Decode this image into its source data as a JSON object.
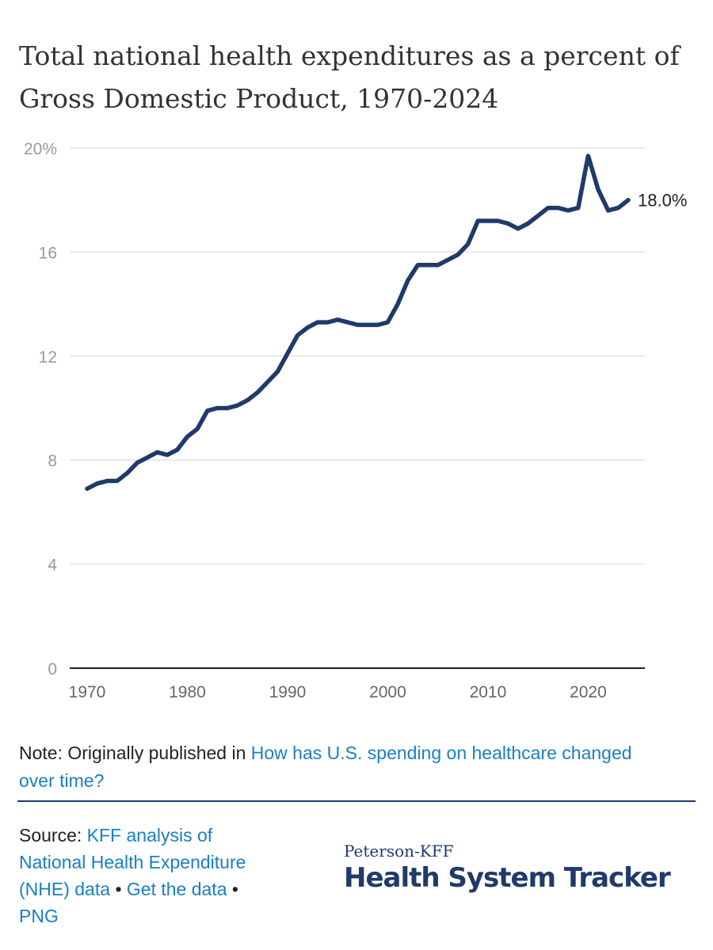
{
  "chart_data": {
    "type": "line",
    "title": "Total national health expenditures as a percent of Gross Domestic Product, 1970-2024",
    "xlabel": "",
    "ylabel": "",
    "xlim": [
      1970,
      2024
    ],
    "ylim": [
      0,
      20
    ],
    "xticks": [
      1970,
      1980,
      1990,
      2000,
      2010,
      2020
    ],
    "ytick_labels": [
      "0",
      "4",
      "8",
      "12",
      "16",
      "20%"
    ],
    "yticks": [
      0,
      4,
      8,
      12,
      16,
      20
    ],
    "grid": true,
    "series": [
      {
        "name": "Total national health expenditures as a percent of GDP",
        "color": "#1f3a6b",
        "x": [
          1970,
          1971,
          1972,
          1973,
          1974,
          1975,
          1976,
          1977,
          1978,
          1979,
          1980,
          1981,
          1982,
          1983,
          1984,
          1985,
          1986,
          1987,
          1988,
          1989,
          1990,
          1991,
          1992,
          1993,
          1994,
          1995,
          1996,
          1997,
          1998,
          1999,
          2000,
          2001,
          2002,
          2003,
          2004,
          2005,
          2006,
          2007,
          2008,
          2009,
          2010,
          2011,
          2012,
          2013,
          2014,
          2015,
          2016,
          2017,
          2018,
          2019,
          2020,
          2021,
          2022,
          2023,
          2024
        ],
        "values": [
          6.9,
          7.1,
          7.2,
          7.2,
          7.5,
          7.9,
          8.1,
          8.3,
          8.2,
          8.4,
          8.9,
          9.2,
          9.9,
          10.0,
          10.0,
          10.1,
          10.3,
          10.6,
          11.0,
          11.4,
          12.1,
          12.8,
          13.1,
          13.3,
          13.3,
          13.4,
          13.3,
          13.2,
          13.2,
          13.2,
          13.3,
          14.0,
          14.9,
          15.5,
          15.5,
          15.5,
          15.7,
          15.9,
          16.3,
          17.2,
          17.2,
          17.2,
          17.1,
          16.9,
          17.1,
          17.4,
          17.7,
          17.7,
          17.6,
          17.7,
          19.7,
          18.4,
          17.6,
          17.7,
          18.0
        ]
      }
    ],
    "end_label": "18.0%"
  },
  "note": {
    "prefix": "Note: Originally published in ",
    "link": "How has U.S. spending on healthcare changed over time?"
  },
  "source": {
    "prefix": "Source: ",
    "link1": "KFF analysis of National Health Expenditure (NHE) data",
    "bullet": "•",
    "link2": "Get the data",
    "link3": "PNG"
  },
  "logo": {
    "top": "Peterson-KFF",
    "main": "Health System Tracker"
  }
}
